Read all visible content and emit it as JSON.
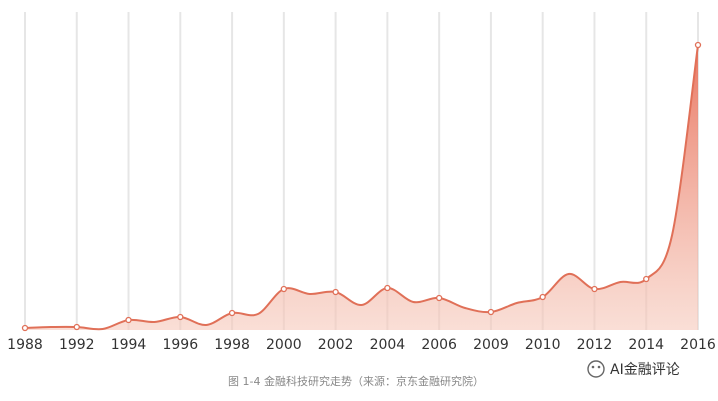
{
  "chart_data": {
    "type": "area",
    "categories": [
      "1988",
      null,
      "1992",
      null,
      "1994",
      null,
      "1996",
      null,
      "1998",
      null,
      "2000",
      null,
      "2002",
      null,
      "2004",
      null,
      "2006",
      null,
      "2009",
      null,
      "2010",
      null,
      "2012",
      null,
      "2014",
      null,
      "2016"
    ],
    "values": [
      2,
      3,
      3,
      1,
      10,
      8,
      13,
      5,
      17,
      16,
      41,
      36,
      38,
      25,
      42,
      28,
      32,
      22,
      18,
      27,
      33,
      56,
      41,
      48,
      51,
      95,
      285
    ],
    "color": "#e07058",
    "grid": true,
    "caption": "图 1-4  金融科技研究走势（来源：京东金融研究院）",
    "watermark": "AI金融评论"
  }
}
